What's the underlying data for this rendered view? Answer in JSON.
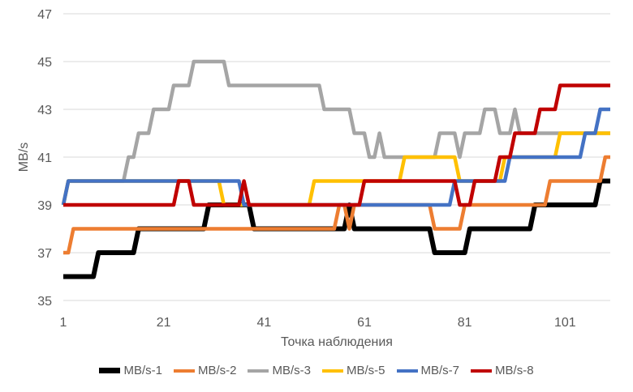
{
  "chart_data": {
    "type": "line",
    "title": "",
    "xlabel": "Точка наблюдения",
    "ylabel": "MB/s",
    "xlim": [
      1,
      110
    ],
    "ylim": [
      35,
      47
    ],
    "x_ticks": [
      "1",
      "21",
      "41",
      "61",
      "81",
      "101"
    ],
    "y_ticks": [
      "35",
      "37",
      "39",
      "41",
      "43",
      "45",
      "47"
    ],
    "grid": "horizontal",
    "legend_position": "bottom",
    "series": [
      {
        "name": "MB/s-1",
        "color": "#000000",
        "runs": [
          [
            1,
            36
          ],
          [
            8,
            37
          ],
          [
            16,
            38
          ],
          [
            30,
            39
          ],
          [
            39,
            38
          ],
          [
            58,
            39
          ],
          [
            59,
            38
          ],
          [
            75,
            37
          ],
          [
            82,
            38
          ],
          [
            95,
            39
          ],
          [
            108,
            40
          ]
        ]
      },
      {
        "name": "MB/s-2",
        "color": "#ED7D31",
        "runs": [
          [
            1,
            37
          ],
          [
            3,
            38
          ],
          [
            56,
            39
          ],
          [
            58,
            38
          ],
          [
            59,
            39
          ],
          [
            75,
            38
          ],
          [
            81,
            39
          ],
          [
            98,
            40
          ],
          [
            109,
            41
          ]
        ]
      },
      {
        "name": "MB/s-3",
        "color": "#A5A5A5",
        "runs": [
          [
            1,
            39
          ],
          [
            2,
            40
          ],
          [
            14,
            41
          ],
          [
            16,
            42
          ],
          [
            19,
            43
          ],
          [
            23,
            44
          ],
          [
            27,
            45
          ],
          [
            34,
            44
          ],
          [
            53,
            43
          ],
          [
            59,
            42
          ],
          [
            62,
            41
          ],
          [
            64,
            42
          ],
          [
            65,
            41
          ],
          [
            76,
            42
          ],
          [
            80,
            41
          ],
          [
            81,
            42
          ],
          [
            85,
            43
          ],
          [
            88,
            42
          ],
          [
            91,
            43
          ],
          [
            92,
            42
          ]
        ]
      },
      {
        "name": "MB/s-5",
        "color": "#FFC000",
        "runs": [
          [
            1,
            39
          ],
          [
            2,
            40
          ],
          [
            33,
            39
          ],
          [
            51,
            40
          ],
          [
            69,
            41
          ],
          [
            80,
            40
          ],
          [
            89,
            41
          ],
          [
            100,
            42
          ]
        ]
      },
      {
        "name": "MB/s-7",
        "color": "#4472C4",
        "runs": [
          [
            1,
            39
          ],
          [
            2,
            40
          ],
          [
            37,
            39
          ],
          [
            79,
            40
          ],
          [
            90,
            41
          ],
          [
            105,
            42
          ],
          [
            108,
            43
          ]
        ]
      },
      {
        "name": "MB/s-8",
        "color": "#C00000",
        "runs": [
          [
            1,
            39
          ],
          [
            24,
            40
          ],
          [
            27,
            39
          ],
          [
            37,
            40
          ],
          [
            38,
            39
          ],
          [
            61,
            40
          ],
          [
            80,
            39
          ],
          [
            83,
            40
          ],
          [
            88,
            41
          ],
          [
            91,
            42
          ],
          [
            96,
            43
          ],
          [
            100,
            44
          ]
        ]
      }
    ]
  }
}
